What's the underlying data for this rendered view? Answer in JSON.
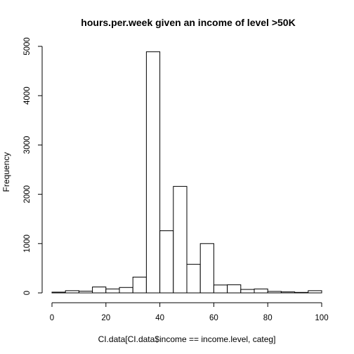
{
  "chart_data": {
    "type": "bar",
    "title": "hours.per.week given an income of level >50K",
    "xlabel": "CI.data[CI.data$income == income.level, categ]",
    "ylabel": "Frequency",
    "xlim": [
      0,
      100
    ],
    "ylim": [
      0,
      5000
    ],
    "bin_width": 5,
    "bins": [
      {
        "x0": 0,
        "x1": 5,
        "count": 15
      },
      {
        "x0": 5,
        "x1": 10,
        "count": 45
      },
      {
        "x0": 10,
        "x1": 15,
        "count": 35
      },
      {
        "x0": 15,
        "x1": 20,
        "count": 120
      },
      {
        "x0": 20,
        "x1": 25,
        "count": 80
      },
      {
        "x0": 25,
        "x1": 30,
        "count": 110
      },
      {
        "x0": 30,
        "x1": 35,
        "count": 320
      },
      {
        "x0": 35,
        "x1": 40,
        "count": 4890
      },
      {
        "x0": 40,
        "x1": 45,
        "count": 1260
      },
      {
        "x0": 45,
        "x1": 50,
        "count": 2160
      },
      {
        "x0": 50,
        "x1": 55,
        "count": 580
      },
      {
        "x0": 55,
        "x1": 60,
        "count": 1000
      },
      {
        "x0": 60,
        "x1": 65,
        "count": 160
      },
      {
        "x0": 65,
        "x1": 70,
        "count": 165
      },
      {
        "x0": 70,
        "x1": 75,
        "count": 70
      },
      {
        "x0": 75,
        "x1": 80,
        "count": 80
      },
      {
        "x0": 80,
        "x1": 85,
        "count": 30
      },
      {
        "x0": 85,
        "x1": 90,
        "count": 20
      },
      {
        "x0": 90,
        "x1": 95,
        "count": 10
      },
      {
        "x0": 95,
        "x1": 100,
        "count": 45
      }
    ],
    "x_ticks": [
      0,
      20,
      40,
      60,
      80,
      100
    ],
    "y_ticks": [
      0,
      1000,
      2000,
      3000,
      4000,
      5000
    ],
    "grid": false,
    "legend": "none",
    "colors": {
      "bar_fill": "#ffffff",
      "bar_stroke": "#000000"
    }
  }
}
